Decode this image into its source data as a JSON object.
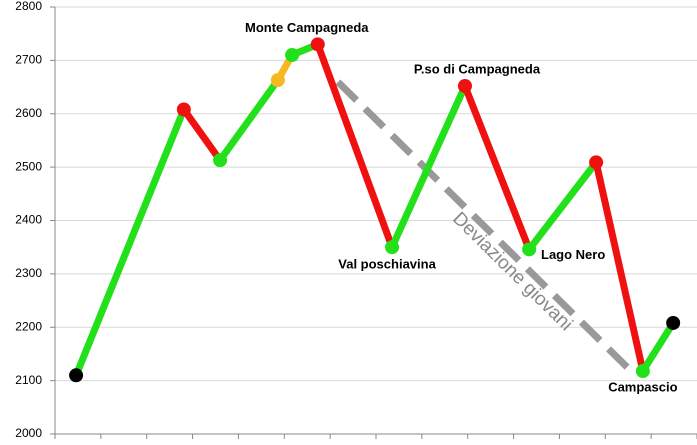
{
  "chart_data": {
    "type": "line",
    "ylim": [
      2000,
      2800
    ],
    "yticks": [
      2000,
      2100,
      2200,
      2300,
      2400,
      2500,
      2600,
      2700,
      2800
    ],
    "grid": true,
    "xlim": [
      0,
      14
    ],
    "xticks": [
      0,
      1,
      2,
      3,
      4,
      5,
      6,
      7,
      8,
      9,
      10,
      11,
      12,
      13,
      14
    ],
    "x": [
      0.46,
      2.81,
      3.6,
      4.86,
      5.17,
      5.73,
      7.35,
      8.94,
      10.34,
      11.8,
      12.82,
      13.48
    ],
    "values": [
      2110,
      2608,
      2513,
      2663,
      2710,
      2730,
      2350,
      2652,
      2346,
      2509,
      2118,
      2208
    ],
    "point_colors": [
      "#000000",
      "#f01010",
      "#22e01a",
      "#f5b820",
      "#22e01a",
      "#f01010",
      "#22e01a",
      "#f01010",
      "#22e01a",
      "#f01010",
      "#22e01a",
      "#000000"
    ],
    "segment_colors": [
      "#22e01a",
      "#f01010",
      "#22e01a",
      "#f5b820",
      "#22e01a",
      "#f01010",
      "#22e01a",
      "#f01010",
      "#22e01a",
      "#f01010",
      "#22e01a"
    ],
    "point_labels": [
      null,
      null,
      null,
      null,
      null,
      "Monte Campagneda",
      "Val poschiavina",
      "P.so di Campagneda",
      "Lago Nero",
      null,
      "Campascio",
      null
    ],
    "annotation": "Deviazione giovani"
  }
}
